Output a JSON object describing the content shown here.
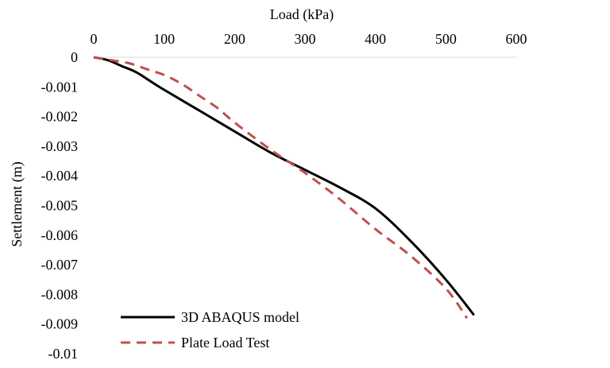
{
  "chart_data": {
    "type": "line",
    "title": "",
    "xlabel": "Load (kPa)",
    "ylabel": "Settlement (m)",
    "xlim": [
      0,
      600
    ],
    "ylim": [
      -0.01,
      0
    ],
    "x_axis_position": "top",
    "x_ticks": [
      "0",
      "100",
      "200",
      "300",
      "400",
      "500",
      "600"
    ],
    "y_ticks": [
      "0",
      "-0.001",
      "-0.002",
      "-0.003",
      "-0.004",
      "-0.005",
      "-0.006",
      "-0.007",
      "-0.008",
      "-0.009",
      "-0.01"
    ],
    "grid": false,
    "legend_position": "bottom-left",
    "series": [
      {
        "name": "3D ABAQUS model",
        "color": "#000000",
        "dash": "solid",
        "x": [
          0,
          20,
          40,
          60,
          80,
          100,
          150,
          200,
          250,
          300,
          350,
          400,
          450,
          500,
          540
        ],
        "y": [
          0,
          -0.0001,
          -0.0003,
          -0.0005,
          -0.0008,
          -0.0011,
          -0.0018,
          -0.0025,
          -0.0032,
          -0.0038,
          -0.0044,
          -0.0051,
          -0.0062,
          -0.0075,
          -0.0087
        ]
      },
      {
        "name": "Plate Load Test",
        "color": "#c0504d",
        "dash": "dashed",
        "x": [
          0,
          25,
          50,
          75,
          100,
          125,
          150,
          175,
          200,
          250,
          300,
          350,
          400,
          450,
          500,
          530
        ],
        "y": [
          0,
          -0.0001,
          -0.0002,
          -0.0004,
          -0.0006,
          -0.0009,
          -0.0013,
          -0.0017,
          -0.0022,
          -0.0031,
          -0.0039,
          -0.0048,
          -0.0058,
          -0.0067,
          -0.0078,
          -0.0088
        ]
      }
    ]
  }
}
